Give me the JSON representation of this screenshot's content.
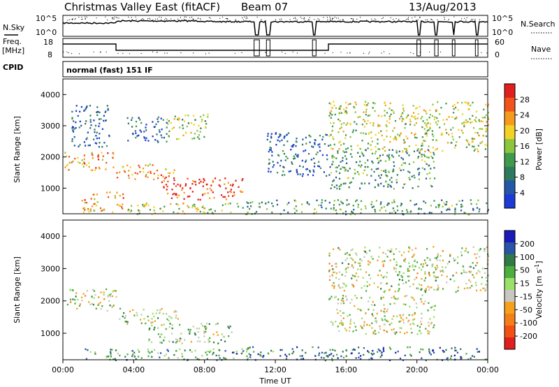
{
  "header": {
    "title": "Christmas Valley East (fitACF)",
    "beam": "Beam 07",
    "date": "13/Aug/2013"
  },
  "noise_panel": {
    "left_label": "N.Sky",
    "right_label": "N.Search",
    "y_ticks": [
      "10^5",
      "10^0"
    ]
  },
  "freq_panel": {
    "left_label_1": "Freq.",
    "left_label_2": "[MHz]",
    "right_label": "Nave",
    "left_ticks": [
      "18",
      "8"
    ],
    "right_ticks": [
      "60",
      "0"
    ]
  },
  "cpid_panel": {
    "label": "CPID",
    "mode_text": "normal (fast) 151 IF"
  },
  "x_axis": {
    "label": "Time UT",
    "ticks": [
      "00:00",
      "04:00",
      "08:00",
      "12:00",
      "16:00",
      "20:00",
      "00:00"
    ]
  },
  "chart_data": [
    {
      "type": "heatmap",
      "title": "Power",
      "ylabel": "Slant Range [km]",
      "y_ticks": [
        1000,
        2000,
        3000,
        4000
      ],
      "ylim": [
        180,
        4500
      ],
      "xlim_hours": [
        0,
        24
      ],
      "colorbar": {
        "label": "Power [dB]",
        "ticks": [
          "4",
          "8",
          "12",
          "16",
          "20",
          "24",
          "28"
        ],
        "colors": [
          "#1e3ad6",
          "#2457a8",
          "#2f7a5c",
          "#3f9a4c",
          "#8cc63c",
          "#f3d226",
          "#f59a1c",
          "#f0541a",
          "#e01f1f"
        ]
      },
      "echo_regions": [
        {
          "t0": 0.0,
          "t1": 2.9,
          "r0": 1600,
          "r1": 2200,
          "level": 0.72
        },
        {
          "t0": 0.4,
          "t1": 2.6,
          "r0": 2350,
          "r1": 3700,
          "level": 0.15
        },
        {
          "t0": 3.0,
          "t1": 6.3,
          "r0": 1300,
          "r1": 1800,
          "level": 0.7
        },
        {
          "t0": 3.6,
          "t1": 6.0,
          "r0": 2500,
          "r1": 3300,
          "level": 0.2
        },
        {
          "t0": 5.5,
          "t1": 10.3,
          "r0": 650,
          "r1": 1350,
          "level": 0.9
        },
        {
          "t0": 5.8,
          "t1": 8.2,
          "r0": 2600,
          "r1": 3400,
          "level": 0.5
        },
        {
          "t0": 1.0,
          "t1": 3.5,
          "r0": 250,
          "r1": 900,
          "level": 0.7
        },
        {
          "t0": 3.5,
          "t1": 10.5,
          "r0": 180,
          "r1": 550,
          "level": 0.55
        },
        {
          "t0": 10.3,
          "t1": 24.0,
          "r0": 180,
          "r1": 650,
          "level": 0.35
        },
        {
          "t0": 11.5,
          "t1": 15.0,
          "r0": 1400,
          "r1": 2800,
          "level": 0.2
        },
        {
          "t0": 15.0,
          "t1": 24.0,
          "r0": 2200,
          "r1": 3800,
          "level": 0.55
        },
        {
          "t0": 15.0,
          "t1": 21.0,
          "r0": 1000,
          "r1": 2300,
          "level": 0.35
        }
      ]
    },
    {
      "type": "heatmap",
      "title": "Velocity",
      "ylabel": "Slant Range [km]",
      "y_ticks": [
        1000,
        2000,
        3000,
        4000
      ],
      "ylim": [
        180,
        4500
      ],
      "xlim_hours": [
        0,
        24
      ],
      "colorbar": {
        "label": "Velocity [m s-1]",
        "ticks": [
          "200",
          "100",
          "50",
          "15",
          "-15",
          "-50",
          "-100",
          "-200"
        ],
        "colors": [
          "#1a1ab8",
          "#2a54a6",
          "#2f7a46",
          "#4cae3c",
          "#9ae06a",
          "#c8c8c0",
          "#f5a11c",
          "#f57f17",
          "#f25014",
          "#e01f1f"
        ]
      },
      "echo_regions": [
        {
          "t0": 0.0,
          "t1": 3.0,
          "r0": 1700,
          "r1": 2400,
          "level": 0.5
        },
        {
          "t0": 3.0,
          "t1": 6.5,
          "r0": 1300,
          "r1": 1800,
          "level": 0.5
        },
        {
          "t0": 4.8,
          "t1": 9.5,
          "r0": 700,
          "r1": 1350,
          "level": 0.6
        },
        {
          "t0": 0.5,
          "t1": 10.5,
          "r0": 180,
          "r1": 550,
          "level": 0.7
        },
        {
          "t0": 10.3,
          "t1": 24.0,
          "r0": 180,
          "r1": 600,
          "level": 0.8
        },
        {
          "t0": 15.0,
          "t1": 24.0,
          "r0": 2300,
          "r1": 3700,
          "level": 0.5
        },
        {
          "t0": 15.0,
          "t1": 21.0,
          "r0": 1000,
          "r1": 2200,
          "level": 0.5
        }
      ]
    }
  ]
}
